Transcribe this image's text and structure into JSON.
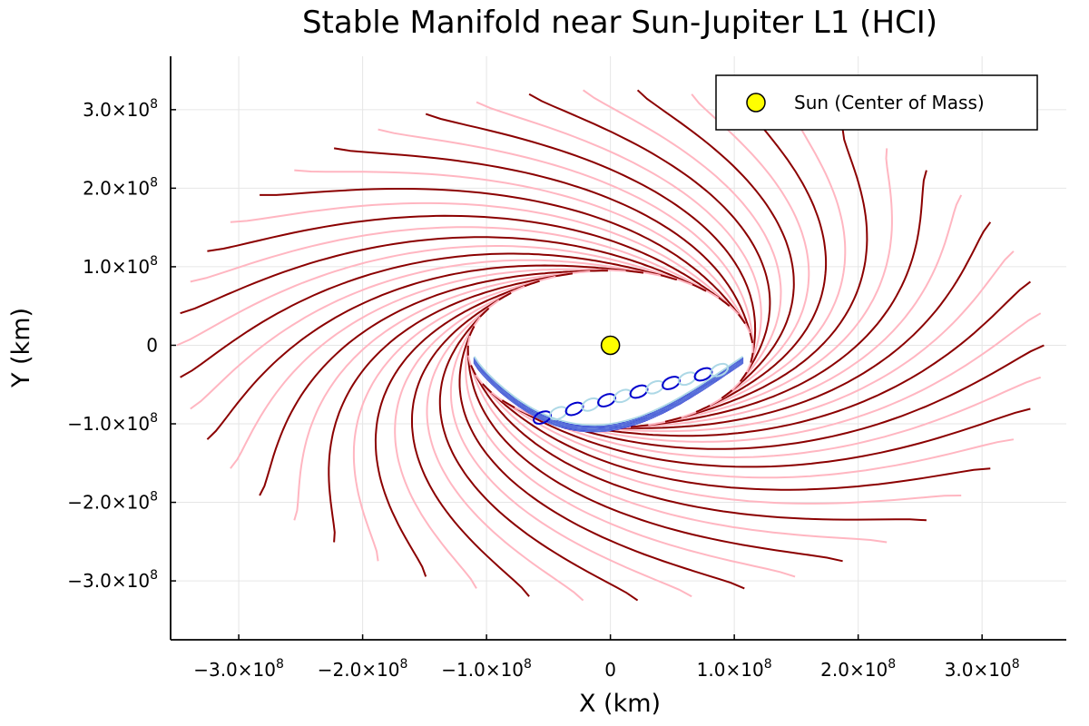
{
  "chart_data": {
    "type": "line",
    "title": "Stable Manifold near Sun-Jupiter L1 (HCI)",
    "xlabel": "X (km)",
    "ylabel": "Y (km)",
    "xlim": [
      -355000000.0,
      368000000.0
    ],
    "ylim": [
      -375000000.0,
      368000000.0
    ],
    "grid": true,
    "legend_position": "top-right",
    "x_ticks": [
      {
        "value": -300000000.0,
        "label": "−3.0×10",
        "exp": "8"
      },
      {
        "value": -200000000.0,
        "label": "−2.0×10",
        "exp": "8"
      },
      {
        "value": -100000000.0,
        "label": "−1.0×10",
        "exp": "8"
      },
      {
        "value": 0,
        "label": "0",
        "exp": ""
      },
      {
        "value": 100000000.0,
        "label": "1.0×10",
        "exp": "8"
      },
      {
        "value": 200000000.0,
        "label": "2.0×10",
        "exp": "8"
      },
      {
        "value": 300000000.0,
        "label": "3.0×10",
        "exp": "8"
      }
    ],
    "y_ticks": [
      {
        "value": -300000000.0,
        "label": "−3.0×10",
        "exp": "8"
      },
      {
        "value": -200000000.0,
        "label": "−2.0×10",
        "exp": "8"
      },
      {
        "value": -100000000.0,
        "label": "−1.0×10",
        "exp": "8"
      },
      {
        "value": 0,
        "label": "0",
        "exp": ""
      },
      {
        "value": 100000000.0,
        "label": "1.0×10",
        "exp": "8"
      },
      {
        "value": 200000000.0,
        "label": "2.0×10",
        "exp": "8"
      },
      {
        "value": 300000000.0,
        "label": "3.0×10",
        "exp": "8"
      }
    ],
    "legend": [
      {
        "label": "Sun (Center of Mass)",
        "marker": "circle",
        "color": "#ffff00"
      }
    ],
    "sun": {
      "x": 0,
      "y": 0,
      "color": "#ffff00"
    },
    "manifold": {
      "trajectory_count": 50,
      "colors": [
        "#8b0000",
        "#ffb6c1"
      ],
      "inner_ellipse": {
        "center_x": 0,
        "center_y": -5000000.0,
        "semi_major": 115000000.0,
        "semi_minor": 100000000.0
      },
      "outer_spiral": {
        "start_radius": 350000000.0,
        "end_radius": 105000000.0
      },
      "sweep_degrees": 125
    },
    "capture_band": {
      "colors": [
        "#0000cd",
        "#add8e6"
      ],
      "x_range": [
        -110000000.0,
        107000000.0
      ],
      "y_range": [
        -110000000.0,
        -15000000.0
      ],
      "arc_count": 14
    }
  }
}
